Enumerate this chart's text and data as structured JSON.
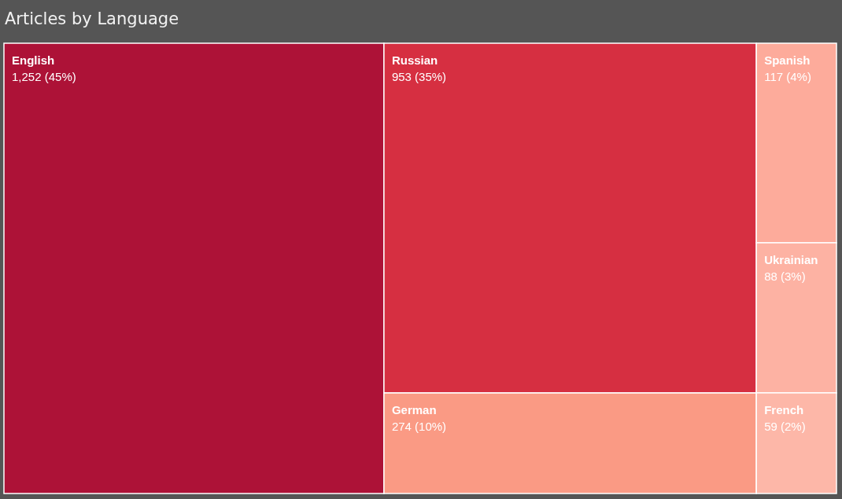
{
  "chart_data": {
    "type": "other",
    "title": "Articles by Language",
    "categories": [
      "English",
      "Russian",
      "German",
      "Spanish",
      "Ukrainian",
      "French"
    ],
    "values": [
      1252,
      953,
      274,
      117,
      88,
      59
    ],
    "value_labels": [
      "1,252 (45%)",
      "953 (35%)",
      "274 (10%)",
      "117 (4%)",
      "88 (3%)",
      "59 (2%)"
    ],
    "colors": [
      "#ad1237",
      "#d62f41",
      "#fa9a84",
      "#fdab9b",
      "#fdb2a3",
      "#fdb7a8"
    ]
  }
}
